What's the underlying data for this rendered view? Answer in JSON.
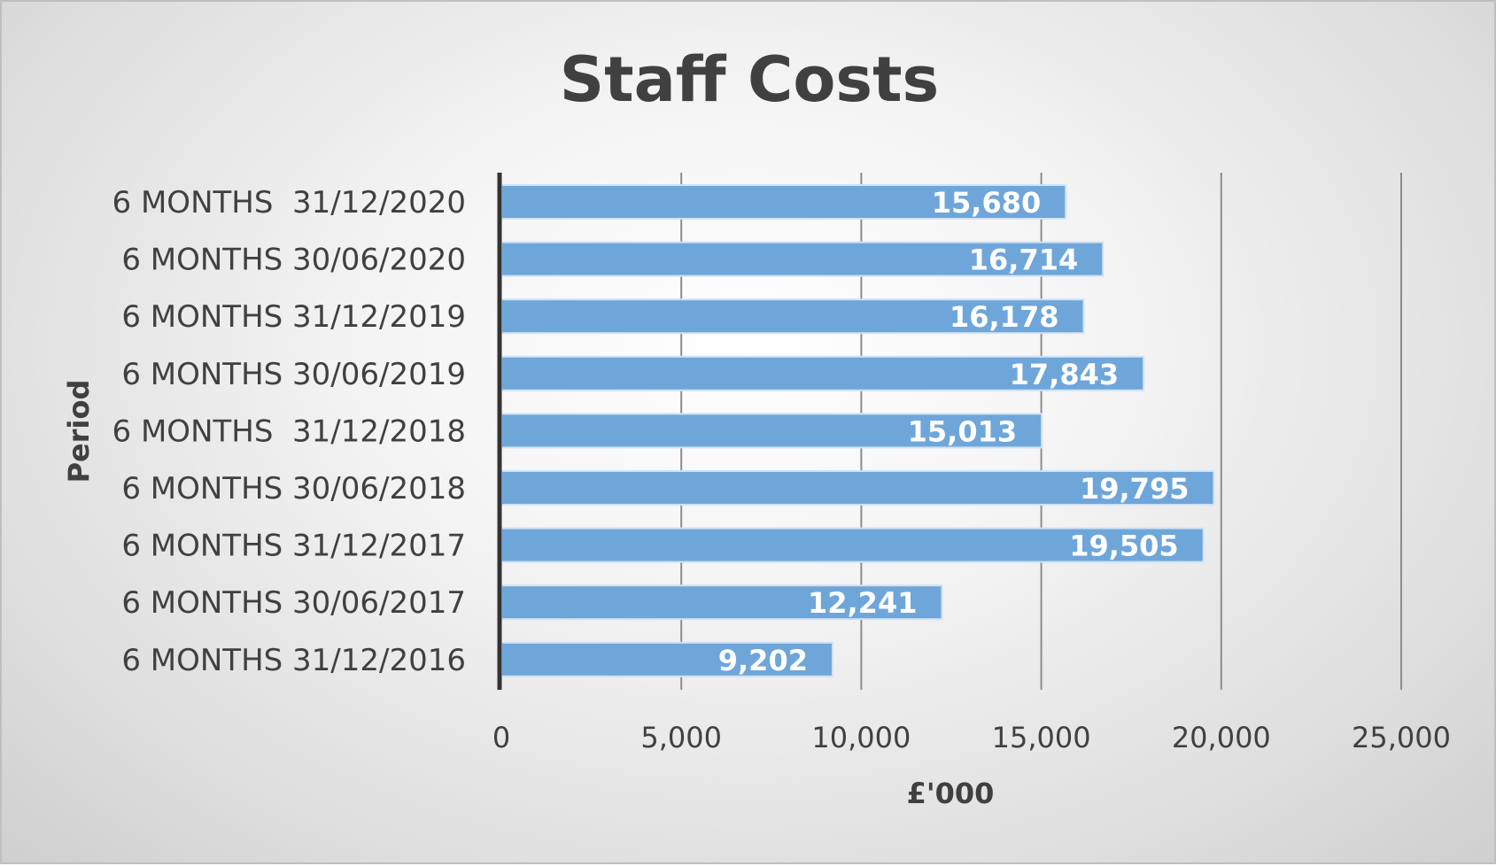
{
  "chart_data": {
    "type": "bar",
    "orientation": "horizontal",
    "title": "Staff Costs",
    "xlabel": "£'000",
    "ylabel": "Period",
    "categories": [
      "6 MONTHS  31/12/2020",
      "6 MONTHS 30/06/2020",
      "6 MONTHS 31/12/2019",
      "6 MONTHS 30/06/2019",
      "6 MONTHS  31/12/2018",
      "6 MONTHS 30/06/2018",
      "6 MONTHS 31/12/2017",
      "6 MONTHS 30/06/2017",
      "6 MONTHS 31/12/2016"
    ],
    "values": [
      15680,
      16714,
      16178,
      17843,
      15013,
      19795,
      19505,
      12241,
      9202
    ],
    "data_labels": [
      "15,680",
      "16,714",
      "16,178",
      "17,843",
      "15,013",
      "19,795",
      "19,505",
      "12,241",
      "9,202"
    ],
    "xlim": [
      0,
      25000
    ],
    "x_ticks": [
      0,
      5000,
      10000,
      15000,
      20000,
      25000
    ],
    "x_tick_labels": [
      "0",
      "5,000",
      "10,000",
      "15,000",
      "20,000",
      "25,000"
    ],
    "grid": "vertical",
    "legend": "none",
    "bar_color": "#6fa6da",
    "data_label_color": "#ffffff"
  }
}
